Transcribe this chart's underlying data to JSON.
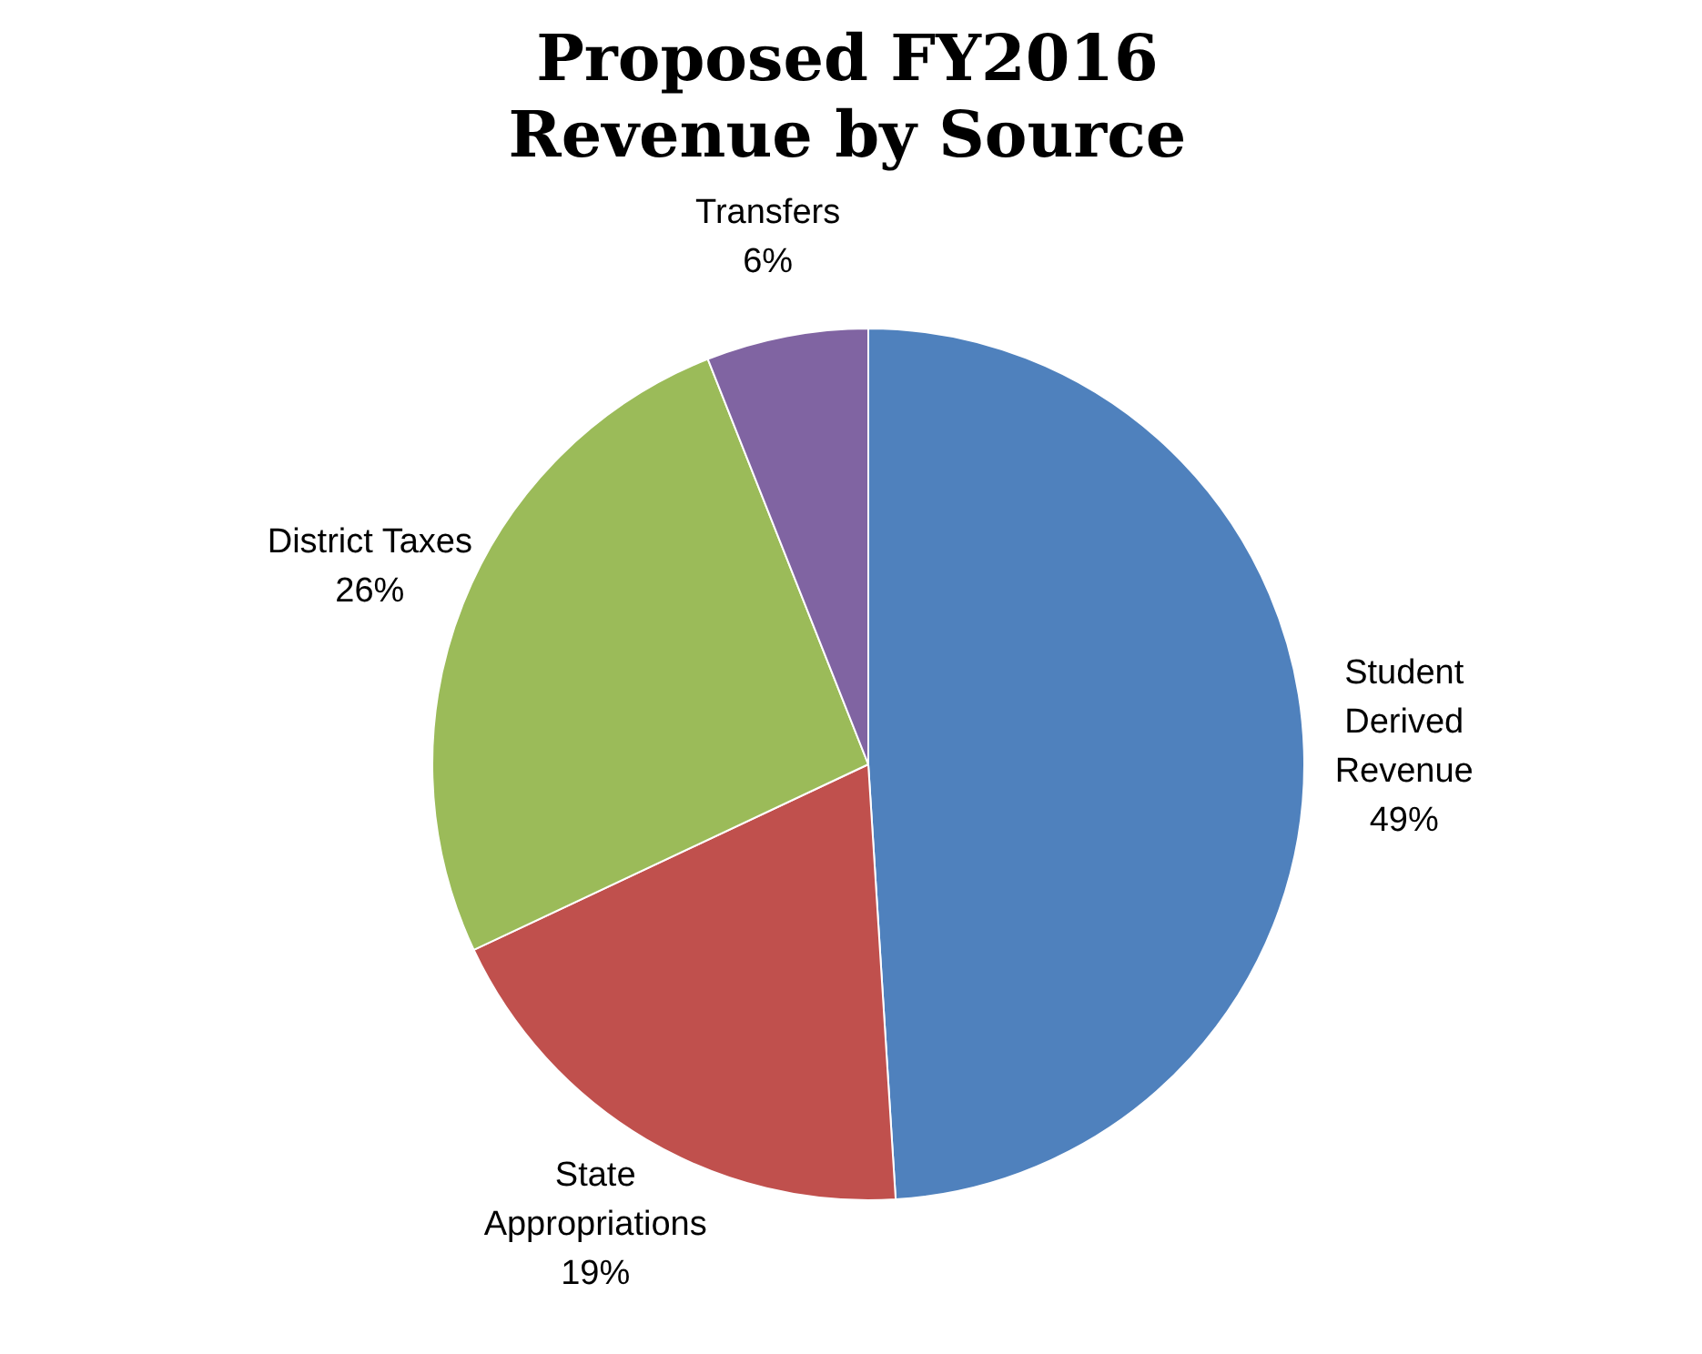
{
  "chart_data": {
    "type": "pie",
    "title": "Proposed FY2016 Revenue by Source",
    "categories": [
      "Student Derived Revenue",
      "State Appropriations",
      "District Taxes",
      "Transfers"
    ],
    "values": [
      49,
      19,
      26,
      6
    ],
    "colors": [
      "#4f81bd",
      "#c0504d",
      "#9bbb59",
      "#8064a2"
    ],
    "value_labels": [
      "49%",
      "19%",
      "26%",
      "6%"
    ],
    "legend": false
  }
}
